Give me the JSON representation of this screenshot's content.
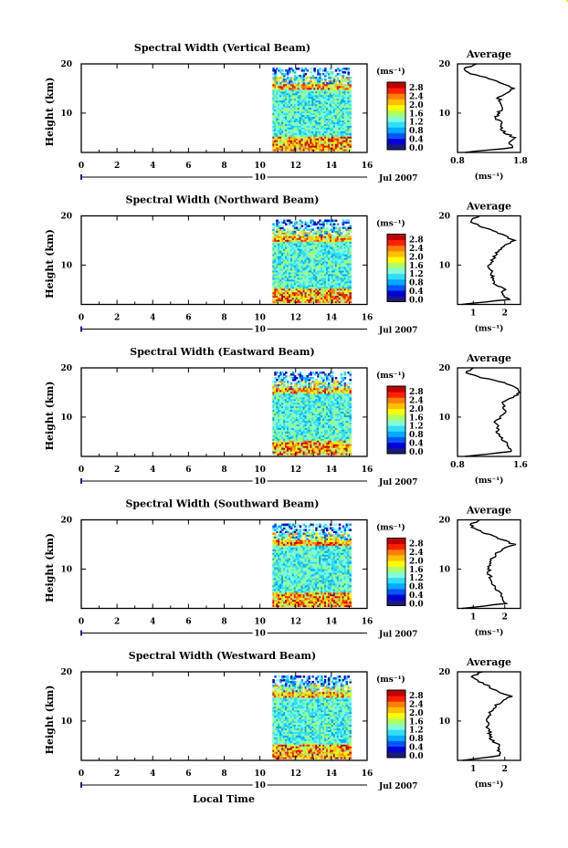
{
  "figure": {
    "xlabel": "Local Time",
    "ylabel": "Height (km)",
    "date_suffix": "Jul 2007",
    "day_label": "10",
    "unit_label": "(ms⁻¹)",
    "average_title": "Average",
    "x_ticks": [
      "0",
      "2",
      "4",
      "6",
      "8",
      "10",
      "12",
      "14",
      "16"
    ],
    "y_ticks": [
      "20",
      "10"
    ],
    "colorbar_ticks": [
      "2.8",
      "2.4",
      "2.0",
      "1.6",
      "1.2",
      "0.8",
      "0.4",
      "0.0"
    ],
    "colors": {
      "colormap": [
        "#1a1a80",
        "#0000d4",
        "#0055ff",
        "#00aaff",
        "#33ddff",
        "#7fffd4",
        "#b0ff60",
        "#ffff00",
        "#ffc000",
        "#ff8000",
        "#ff2000",
        "#c00000"
      ]
    }
  },
  "chart_data": [
    {
      "type": "heatmap",
      "title": "Spectral Width (Vertical Beam)",
      "xlabel": "Local Time",
      "ylabel": "Height (km)",
      "xlim": [
        0,
        16
      ],
      "ylim": [
        2,
        20
      ],
      "data_time_range": [
        10.7,
        15.1
      ],
      "colorbar": {
        "label": "(ms⁻¹)",
        "range": [
          0.0,
          2.8
        ]
      },
      "average_profile": {
        "title": "Average",
        "xlabel": "(ms⁻¹)",
        "xlim": [
          0.8,
          1.8
        ],
        "xticks": [
          "0.8",
          "1.8"
        ],
        "heights": [
          2,
          3,
          4,
          5,
          6,
          7,
          8,
          9,
          10,
          11,
          12,
          13,
          14,
          15,
          16,
          17,
          18,
          19,
          20
        ],
        "values": [
          0.9,
          1.7,
          1.6,
          1.7,
          1.55,
          1.5,
          1.52,
          1.4,
          1.45,
          1.5,
          1.5,
          1.45,
          1.55,
          1.7,
          1.5,
          1.3,
          1.0,
          0.9,
          1.1
        ]
      }
    },
    {
      "type": "heatmap",
      "title": "Spectral Width (Northward Beam)",
      "xlabel": "Local Time",
      "ylabel": "Height (km)",
      "xlim": [
        0,
        16
      ],
      "ylim": [
        2,
        20
      ],
      "data_time_range": [
        10.7,
        15.1
      ],
      "colorbar": {
        "label": "(ms⁻¹)",
        "range": [
          0.0,
          2.8
        ]
      },
      "average_profile": {
        "title": "Average",
        "xlabel": "(ms⁻¹)",
        "xlim": [
          0.5,
          2.5
        ],
        "xticks": [
          "1",
          "2"
        ],
        "heights": [
          2,
          3,
          4,
          5,
          6,
          7,
          8,
          9,
          10,
          11,
          12,
          13,
          14,
          15,
          16,
          17,
          18,
          19,
          20
        ],
        "values": [
          0.6,
          2.1,
          1.9,
          2.0,
          1.7,
          1.65,
          1.6,
          1.55,
          1.5,
          1.6,
          1.7,
          1.8,
          2.0,
          2.3,
          2.0,
          1.6,
          1.2,
          0.9,
          1.2
        ]
      }
    },
    {
      "type": "heatmap",
      "title": "Spectral Width (Eastward Beam)",
      "xlabel": "Local Time",
      "ylabel": "Height (km)",
      "xlim": [
        0,
        16
      ],
      "ylim": [
        2,
        20
      ],
      "data_time_range": [
        10.7,
        15.1
      ],
      "colorbar": {
        "label": "(ms⁻¹)",
        "range": [
          0.0,
          2.8
        ]
      },
      "average_profile": {
        "title": "Average",
        "xlabel": "(ms⁻¹)",
        "xlim": [
          0.8,
          1.6
        ],
        "xticks": [
          "0.8",
          "1.6"
        ],
        "heights": [
          2,
          3,
          4,
          5,
          6,
          7,
          8,
          9,
          10,
          11,
          12,
          13,
          14,
          15,
          16,
          17,
          18,
          19,
          20
        ],
        "values": [
          0.9,
          1.5,
          1.45,
          1.4,
          1.35,
          1.3,
          1.32,
          1.28,
          1.35,
          1.4,
          1.4,
          1.38,
          1.5,
          1.6,
          1.55,
          1.4,
          1.1,
          0.9,
          1.0
        ]
      }
    },
    {
      "type": "heatmap",
      "title": "Spectral Width (Southward Beam)",
      "xlabel": "Local Time",
      "ylabel": "Height (km)",
      "xlim": [
        0,
        16
      ],
      "ylim": [
        2,
        20
      ],
      "data_time_range": [
        10.7,
        15.1
      ],
      "colorbar": {
        "label": "(ms⁻¹)",
        "range": [
          0.0,
          2.8
        ]
      },
      "average_profile": {
        "title": "Average",
        "xlabel": "(ms⁻¹)",
        "xlim": [
          0.5,
          2.5
        ],
        "xticks": [
          "1",
          "2"
        ],
        "heights": [
          2,
          3,
          4,
          5,
          6,
          7,
          8,
          9,
          10,
          11,
          12,
          13,
          14,
          15,
          16,
          17,
          18,
          19,
          20
        ],
        "values": [
          0.7,
          2.0,
          1.9,
          1.95,
          1.7,
          1.6,
          1.55,
          1.5,
          1.5,
          1.55,
          1.6,
          1.7,
          1.9,
          2.3,
          1.9,
          1.5,
          1.1,
          0.9,
          1.2
        ]
      }
    },
    {
      "type": "heatmap",
      "title": "Spectral Width (Westward Beam)",
      "xlabel": "Local Time",
      "ylabel": "Height (km)",
      "xlim": [
        0,
        16
      ],
      "ylim": [
        2,
        20
      ],
      "data_time_range": [
        10.7,
        15.1
      ],
      "colorbar": {
        "label": "(ms⁻¹)",
        "range": [
          0.0,
          2.8
        ]
      },
      "average_profile": {
        "title": "Average",
        "xlabel": "(ms⁻¹)",
        "xlim": [
          0.5,
          2.5
        ],
        "xticks": [
          "1",
          "2"
        ],
        "heights": [
          2,
          3,
          4,
          5,
          6,
          7,
          8,
          9,
          10,
          11,
          12,
          13,
          14,
          15,
          16,
          17,
          18,
          19,
          20
        ],
        "values": [
          0.7,
          1.9,
          1.8,
          1.85,
          1.6,
          1.55,
          1.5,
          1.45,
          1.45,
          1.5,
          1.55,
          1.7,
          1.9,
          2.2,
          1.8,
          1.5,
          1.2,
          0.9,
          1.3
        ]
      }
    }
  ]
}
